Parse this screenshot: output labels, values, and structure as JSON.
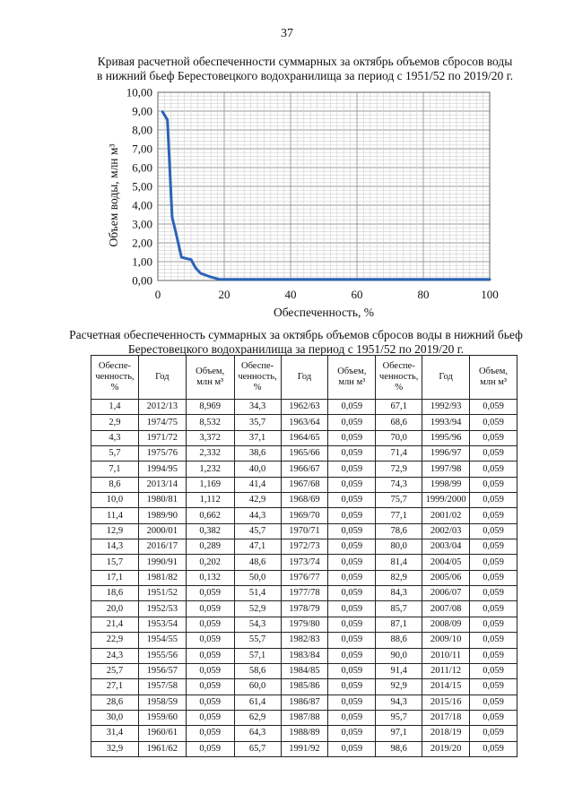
{
  "page_number": "37",
  "chart": {
    "title_line1": "Кривая расчетной обеспеченности суммарных за октябрь объемов сбросов воды",
    "title_line2": "в нижний бьеф Берестовецкого водохранилища за период с 1951/52 по 2019/20 г.",
    "ylabel": "Объем  воды, млн м³",
    "xlabel": "Обеспеченность, %",
    "ytick_labels": [
      "0,00",
      "1,00",
      "2,00",
      "3,00",
      "4,00",
      "5,00",
      "6,00",
      "7,00",
      "8,00",
      "9,00",
      "10,00"
    ],
    "xtick_labels": [
      "0",
      "20",
      "40",
      "60",
      "80",
      "100"
    ],
    "line_color": "#2b63b8"
  },
  "chart_data": {
    "type": "line",
    "title": "Кривая расчетной обеспеченности суммарных за октябрь объемов сбросов воды в нижний бьеф Берестовецкого водохранилища за период с 1951/52 по 2019/20 г.",
    "xlabel": "Обеспеченность, %",
    "ylabel": "Объем воды, млн м³",
    "xlim": [
      0,
      100
    ],
    "ylim": [
      0,
      10
    ],
    "grid": true,
    "x": [
      1.4,
      2.9,
      4.3,
      5.7,
      7.1,
      8.6,
      10.0,
      11.4,
      12.9,
      14.3,
      15.7,
      17.1,
      18.6,
      100
    ],
    "y": [
      8.969,
      8.532,
      3.372,
      2.332,
      1.232,
      1.169,
      1.112,
      0.662,
      0.382,
      0.289,
      0.202,
      0.132,
      0.059,
      0.059
    ]
  },
  "table": {
    "title_line1": "Расчетная обеспеченность суммарных за октябрь объемов сбросов воды в нижний бьеф",
    "title_line2": "Берестовецкого водохранилища за период с 1951/52 по 2019/20 г.",
    "headers": [
      "Обеспе-\nченность,\n%",
      "Год",
      "Объем,\nмлн м³",
      "Обеспе-\nченность,\n%",
      "Год",
      "Объем,\nмлн м³",
      "Обеспе-\nченность,\n%",
      "Год",
      "Объем,\nмлн м³"
    ],
    "rows": [
      [
        "1,4",
        "2012/13",
        "8,969",
        "34,3",
        "1962/63",
        "0,059",
        "67,1",
        "1992/93",
        "0,059"
      ],
      [
        "2,9",
        "1974/75",
        "8,532",
        "35,7",
        "1963/64",
        "0,059",
        "68,6",
        "1993/94",
        "0,059"
      ],
      [
        "4,3",
        "1971/72",
        "3,372",
        "37,1",
        "1964/65",
        "0,059",
        "70,0",
        "1995/96",
        "0,059"
      ],
      [
        "5,7",
        "1975/76",
        "2,332",
        "38,6",
        "1965/66",
        "0,059",
        "71,4",
        "1996/97",
        "0,059"
      ],
      [
        "7,1",
        "1994/95",
        "1,232",
        "40,0",
        "1966/67",
        "0,059",
        "72,9",
        "1997/98",
        "0,059"
      ],
      [
        "8,6",
        "2013/14",
        "1,169",
        "41,4",
        "1967/68",
        "0,059",
        "74,3",
        "1998/99",
        "0,059"
      ],
      [
        "10,0",
        "1980/81",
        "1,112",
        "42,9",
        "1968/69",
        "0,059",
        "75,7",
        "1999/2000",
        "0,059"
      ],
      [
        "11,4",
        "1989/90",
        "0,662",
        "44,3",
        "1969/70",
        "0,059",
        "77,1",
        "2001/02",
        "0,059"
      ],
      [
        "12,9",
        "2000/01",
        "0,382",
        "45,7",
        "1970/71",
        "0,059",
        "78,6",
        "2002/03",
        "0,059"
      ],
      [
        "14,3",
        "2016/17",
        "0,289",
        "47,1",
        "1972/73",
        "0,059",
        "80,0",
        "2003/04",
        "0,059"
      ],
      [
        "15,7",
        "1990/91",
        "0,202",
        "48,6",
        "1973/74",
        "0,059",
        "81,4",
        "2004/05",
        "0,059"
      ],
      [
        "17,1",
        "1981/82",
        "0,132",
        "50,0",
        "1976/77",
        "0,059",
        "82,9",
        "2005/06",
        "0,059"
      ],
      [
        "18,6",
        "1951/52",
        "0,059",
        "51,4",
        "1977/78",
        "0,059",
        "84,3",
        "2006/07",
        "0,059"
      ],
      [
        "20,0",
        "1952/53",
        "0,059",
        "52,9",
        "1978/79",
        "0,059",
        "85,7",
        "2007/08",
        "0,059"
      ],
      [
        "21,4",
        "1953/54",
        "0,059",
        "54,3",
        "1979/80",
        "0,059",
        "87,1",
        "2008/09",
        "0,059"
      ],
      [
        "22,9",
        "1954/55",
        "0,059",
        "55,7",
        "1982/83",
        "0,059",
        "88,6",
        "2009/10",
        "0,059"
      ],
      [
        "24,3",
        "1955/56",
        "0,059",
        "57,1",
        "1983/84",
        "0,059",
        "90,0",
        "2010/11",
        "0,059"
      ],
      [
        "25,7",
        "1956/57",
        "0,059",
        "58,6",
        "1984/85",
        "0,059",
        "91,4",
        "2011/12",
        "0,059"
      ],
      [
        "27,1",
        "1957/58",
        "0,059",
        "60,0",
        "1985/86",
        "0,059",
        "92,9",
        "2014/15",
        "0,059"
      ],
      [
        "28,6",
        "1958/59",
        "0,059",
        "61,4",
        "1986/87",
        "0,059",
        "94,3",
        "2015/16",
        "0,059"
      ],
      [
        "30,0",
        "1959/60",
        "0,059",
        "62,9",
        "1987/88",
        "0,059",
        "95,7",
        "2017/18",
        "0,059"
      ],
      [
        "31,4",
        "1960/61",
        "0,059",
        "64,3",
        "1988/89",
        "0,059",
        "97,1",
        "2018/19",
        "0,059"
      ],
      [
        "32,9",
        "1961/62",
        "0,059",
        "65,7",
        "1991/92",
        "0,059",
        "98,6",
        "2019/20",
        "0,059"
      ]
    ]
  }
}
